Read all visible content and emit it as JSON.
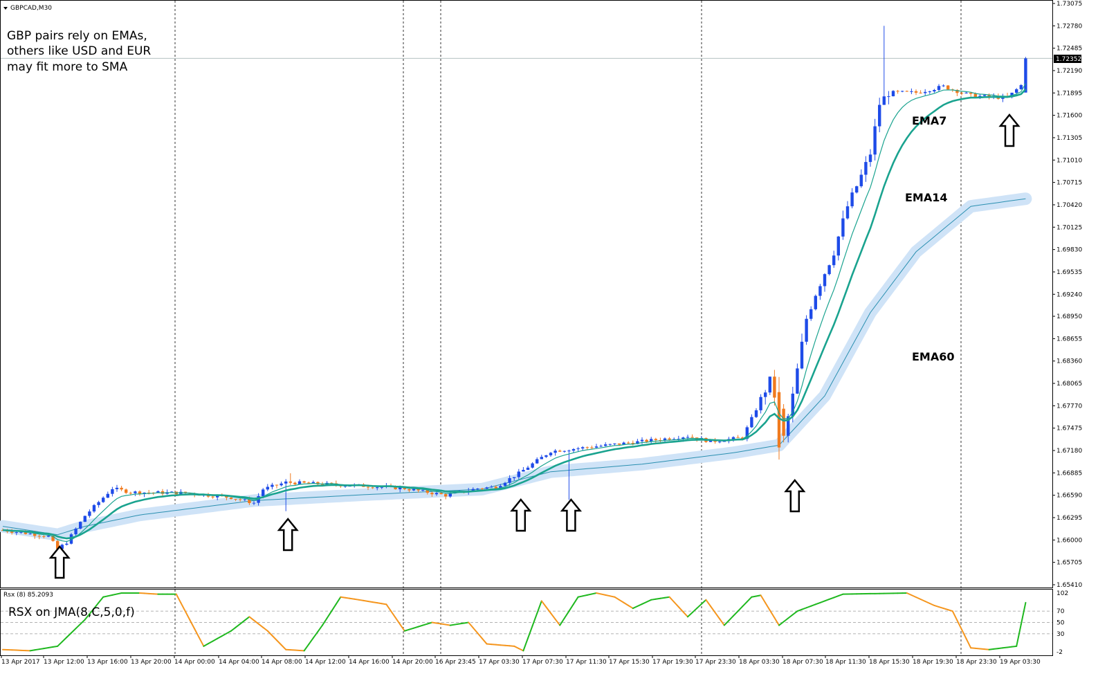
{
  "window": {
    "symbol_label": "GBPCAD,M30",
    "current_price": "1.72352"
  },
  "annotations": {
    "note_lines": [
      "GBP pairs rely on EMAs,",
      "others like USD and EUR",
      "may fit more to SMA"
    ],
    "ema_labels": [
      "EMA7",
      "EMA14",
      "EMA60"
    ],
    "rsx_note": "RSX on JMA(8,C,5,0,f)"
  },
  "indicator": {
    "title": "Rsx (8) 85.2093",
    "axis_labels": [
      "102",
      "70",
      "50",
      "30",
      "-2",
      "-2.00"
    ]
  },
  "colors": {
    "bull": "#1e4be8",
    "bear": "#f07a1e",
    "ema7": "#1aa38f",
    "ema14": "#1aa38f",
    "ema60_band": "#cfe3f7",
    "ema60_line": "#2a8fb0",
    "rsx_up": "#1fb81f",
    "rsx_down": "#f5961e"
  },
  "chart_data": {
    "type": "candlestick",
    "symbol": "GBPCAD",
    "timeframe": "M30",
    "y_ticks": [
      "1.73075",
      "1.72780",
      "1.72485",
      "1.72190",
      "1.71895",
      "1.71600",
      "1.71305",
      "1.71010",
      "1.70715",
      "1.70420",
      "1.70125",
      "1.69830",
      "1.69535",
      "1.69240",
      "1.68950",
      "1.68655",
      "1.68360",
      "1.68065",
      "1.67770",
      "1.67475",
      "1.67180",
      "1.66885",
      "1.66590",
      "1.66295",
      "1.66000",
      "1.65705",
      "1.65410"
    ],
    "ylim": [
      1.6541,
      1.73075
    ],
    "x_labels": [
      "13 Apr 2017",
      "13 Apr 12:00",
      "13 Apr 16:00",
      "13 Apr 20:00",
      "14 Apr 00:00",
      "14 Apr 04:00",
      "14 Apr 08:00",
      "14 Apr 12:00",
      "14 Apr 16:00",
      "14 Apr 20:00",
      "16 Apr 23:45",
      "17 Apr 03:30",
      "17 Apr 07:30",
      "17 Apr 11:30",
      "17 Apr 15:30",
      "17 Apr 19:30",
      "17 Apr 23:30",
      "18 Apr 03:30",
      "18 Apr 07:30",
      "18 Apr 11:30",
      "18 Apr 15:30",
      "18 Apr 19:30",
      "18 Apr 23:30",
      "19 Apr 03:30"
    ],
    "price_anchors": [
      [
        0,
        1.6613
      ],
      [
        10,
        1.6605
      ],
      [
        12,
        1.6588
      ],
      [
        14,
        1.6597
      ],
      [
        18,
        1.6632
      ],
      [
        24,
        1.6668
      ],
      [
        28,
        1.6663
      ],
      [
        40,
        1.6662
      ],
      [
        50,
        1.6656
      ],
      [
        55,
        1.6649
      ],
      [
        57,
        1.6667
      ],
      [
        62,
        1.6676
      ],
      [
        80,
        1.6671
      ],
      [
        88,
        1.6668
      ],
      [
        97,
        1.6659
      ],
      [
        104,
        1.6668
      ],
      [
        108,
        1.667
      ],
      [
        113,
        1.6688
      ],
      [
        120,
        1.6717
      ],
      [
        140,
        1.673
      ],
      [
        150,
        1.6737
      ],
      [
        155,
        1.673
      ],
      [
        162,
        1.6735
      ],
      [
        168,
        1.681
      ],
      [
        170,
        1.677
      ],
      [
        171,
        1.6735
      ],
      [
        173,
        1.679
      ],
      [
        176,
        1.6892
      ],
      [
        178,
        1.6925
      ],
      [
        182,
        1.698
      ],
      [
        185,
        1.704
      ],
      [
        188,
        1.708
      ],
      [
        190,
        1.711
      ],
      [
        192,
        1.7175
      ],
      [
        194,
        1.719
      ],
      [
        200,
        1.719
      ],
      [
        206,
        1.7198
      ],
      [
        212,
        1.7186
      ],
      [
        220,
        1.7183
      ],
      [
        224,
        1.7205
      ]
    ],
    "ema60_anchors": [
      [
        0,
        1.6618
      ],
      [
        12,
        1.6607
      ],
      [
        18,
        1.6618
      ],
      [
        30,
        1.6633
      ],
      [
        55,
        1.6652
      ],
      [
        80,
        1.666
      ],
      [
        105,
        1.6667
      ],
      [
        120,
        1.669
      ],
      [
        140,
        1.67
      ],
      [
        160,
        1.6715
      ],
      [
        170,
        1.6725
      ],
      [
        180,
        1.679
      ],
      [
        190,
        1.69
      ],
      [
        200,
        1.698
      ],
      [
        212,
        1.704
      ],
      [
        224,
        1.705
      ]
    ],
    "rsx_values": [
      [
        0,
        2
      ],
      [
        6,
        0
      ],
      [
        12,
        8
      ],
      [
        18,
        55
      ],
      [
        22,
        95
      ],
      [
        26,
        102
      ],
      [
        30,
        102
      ],
      [
        34,
        100
      ],
      [
        38,
        100
      ],
      [
        44,
        8
      ],
      [
        50,
        35
      ],
      [
        54,
        60
      ],
      [
        58,
        35
      ],
      [
        62,
        2
      ],
      [
        66,
        0
      ],
      [
        70,
        45
      ],
      [
        74,
        95
      ],
      [
        78,
        90
      ],
      [
        84,
        82
      ],
      [
        88,
        35
      ],
      [
        94,
        50
      ],
      [
        98,
        45
      ],
      [
        102,
        50
      ],
      [
        106,
        12
      ],
      [
        112,
        8
      ],
      [
        114,
        0
      ],
      [
        118,
        88
      ],
      [
        122,
        45
      ],
      [
        126,
        95
      ],
      [
        130,
        102
      ],
      [
        134,
        95
      ],
      [
        138,
        75
      ],
      [
        142,
        90
      ],
      [
        146,
        95
      ],
      [
        150,
        60
      ],
      [
        154,
        90
      ],
      [
        158,
        45
      ],
      [
        164,
        95
      ],
      [
        166,
        98
      ],
      [
        170,
        45
      ],
      [
        174,
        70
      ],
      [
        184,
        100
      ],
      [
        198,
        102
      ],
      [
        204,
        80
      ],
      [
        208,
        70
      ],
      [
        212,
        5
      ],
      [
        216,
        2
      ],
      [
        222,
        8
      ],
      [
        224,
        85
      ]
    ],
    "arrow_bars": [
      12,
      62,
      113,
      124,
      173,
      220
    ]
  }
}
